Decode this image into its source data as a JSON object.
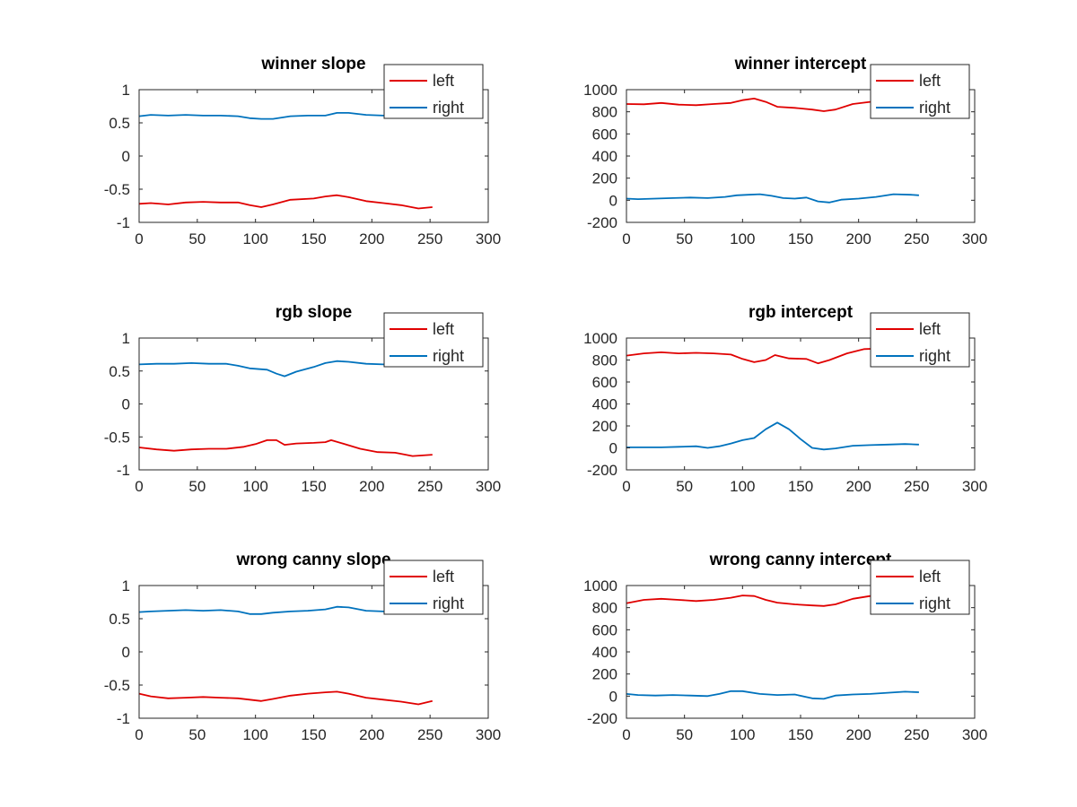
{
  "colors": {
    "left": "#e00000",
    "right": "#0072bd",
    "axis": "#262626",
    "background": "#ffffff"
  },
  "chart_data": [
    {
      "type": "line",
      "title": "winner slope",
      "xlabel": "",
      "ylabel": "",
      "xlim": [
        0,
        300
      ],
      "ylim": [
        -1,
        1
      ],
      "xticks": [
        0,
        50,
        100,
        150,
        200,
        250,
        300
      ],
      "yticks": [
        -1,
        -0.5,
        0,
        0.5,
        1
      ],
      "legend_position": "top-right",
      "grid": false,
      "series": [
        {
          "name": "left",
          "color": "#e00000",
          "x": [
            0,
            10,
            25,
            40,
            55,
            70,
            85,
            95,
            105,
            115,
            130,
            150,
            160,
            170,
            180,
            195,
            210,
            225,
            240,
            252
          ],
          "y": [
            -0.72,
            -0.71,
            -0.73,
            -0.7,
            -0.69,
            -0.7,
            -0.7,
            -0.74,
            -0.77,
            -0.73,
            -0.66,
            -0.64,
            -0.61,
            -0.59,
            -0.62,
            -0.68,
            -0.71,
            -0.74,
            -0.79,
            -0.77
          ]
        },
        {
          "name": "right",
          "color": "#0072bd",
          "x": [
            0,
            10,
            25,
            40,
            55,
            70,
            85,
            95,
            105,
            115,
            130,
            145,
            160,
            170,
            180,
            195,
            210,
            225,
            240,
            252
          ],
          "y": [
            0.6,
            0.62,
            0.61,
            0.62,
            0.61,
            0.61,
            0.6,
            0.57,
            0.56,
            0.56,
            0.6,
            0.61,
            0.61,
            0.65,
            0.65,
            0.62,
            0.61,
            0.61,
            0.61,
            0.61
          ]
        }
      ]
    },
    {
      "type": "line",
      "title": "winner intercept",
      "xlabel": "",
      "ylabel": "",
      "xlim": [
        0,
        300
      ],
      "ylim": [
        -200,
        1000
      ],
      "xticks": [
        0,
        50,
        100,
        150,
        200,
        250,
        300
      ],
      "yticks": [
        -200,
        0,
        200,
        400,
        600,
        800,
        1000
      ],
      "legend_position": "top-right",
      "grid": false,
      "series": [
        {
          "name": "left",
          "color": "#e00000",
          "x": [
            0,
            15,
            30,
            45,
            60,
            75,
            90,
            100,
            110,
            120,
            130,
            145,
            160,
            170,
            180,
            195,
            210,
            225,
            240,
            252
          ],
          "y": [
            870,
            868,
            880,
            865,
            860,
            870,
            880,
            905,
            920,
            890,
            845,
            835,
            820,
            805,
            820,
            870,
            890,
            900,
            900,
            895
          ]
        },
        {
          "name": "right",
          "color": "#0072bd",
          "x": [
            0,
            10,
            25,
            40,
            55,
            70,
            85,
            95,
            105,
            115,
            125,
            135,
            145,
            155,
            165,
            175,
            185,
            200,
            215,
            230,
            245,
            252
          ],
          "y": [
            15,
            10,
            15,
            20,
            25,
            20,
            30,
            45,
            50,
            55,
            40,
            20,
            15,
            25,
            -10,
            -20,
            5,
            15,
            30,
            55,
            50,
            45
          ]
        }
      ]
    },
    {
      "type": "line",
      "title": "rgb slope",
      "xlabel": "",
      "ylabel": "",
      "xlim": [
        0,
        300
      ],
      "ylim": [
        -1,
        1
      ],
      "xticks": [
        0,
        50,
        100,
        150,
        200,
        250,
        300
      ],
      "yticks": [
        -1,
        -0.5,
        0,
        0.5,
        1
      ],
      "legend_position": "top-right",
      "grid": false,
      "series": [
        {
          "name": "left",
          "color": "#e00000",
          "x": [
            0,
            15,
            30,
            45,
            60,
            75,
            90,
            100,
            110,
            118,
            125,
            135,
            150,
            160,
            165,
            175,
            190,
            205,
            220,
            235,
            252
          ],
          "y": [
            -0.66,
            -0.69,
            -0.71,
            -0.69,
            -0.68,
            -0.68,
            -0.65,
            -0.61,
            -0.55,
            -0.55,
            -0.62,
            -0.6,
            -0.59,
            -0.58,
            -0.55,
            -0.6,
            -0.68,
            -0.73,
            -0.74,
            -0.79,
            -0.77
          ]
        },
        {
          "name": "right",
          "color": "#0072bd",
          "x": [
            0,
            15,
            30,
            45,
            60,
            75,
            85,
            95,
            110,
            118,
            125,
            135,
            150,
            160,
            170,
            180,
            195,
            210,
            225,
            240,
            252
          ],
          "y": [
            0.6,
            0.61,
            0.61,
            0.62,
            0.61,
            0.61,
            0.58,
            0.54,
            0.52,
            0.46,
            0.42,
            0.49,
            0.56,
            0.62,
            0.65,
            0.64,
            0.61,
            0.6,
            0.61,
            0.62,
            0.61
          ]
        }
      ]
    },
    {
      "type": "line",
      "title": "rgb intercept",
      "xlabel": "",
      "ylabel": "",
      "xlim": [
        0,
        300
      ],
      "ylim": [
        -200,
        1000
      ],
      "xticks": [
        0,
        50,
        100,
        150,
        200,
        250,
        300
      ],
      "yticks": [
        -200,
        0,
        200,
        400,
        600,
        800,
        1000
      ],
      "legend_position": "top-right",
      "grid": false,
      "series": [
        {
          "name": "left",
          "color": "#e00000",
          "x": [
            0,
            15,
            30,
            45,
            60,
            75,
            90,
            100,
            110,
            120,
            128,
            140,
            155,
            165,
            175,
            190,
            205,
            220,
            235,
            252
          ],
          "y": [
            840,
            860,
            870,
            860,
            865,
            860,
            850,
            810,
            780,
            800,
            845,
            815,
            810,
            770,
            800,
            860,
            900,
            905,
            905,
            900
          ]
        },
        {
          "name": "right",
          "color": "#0072bd",
          "x": [
            0,
            15,
            30,
            45,
            60,
            70,
            80,
            90,
            100,
            110,
            120,
            130,
            140,
            150,
            160,
            170,
            180,
            195,
            210,
            225,
            240,
            252
          ],
          "y": [
            5,
            5,
            5,
            10,
            15,
            0,
            15,
            40,
            70,
            90,
            170,
            230,
            170,
            80,
            0,
            -15,
            -5,
            20,
            25,
            30,
            35,
            30
          ]
        }
      ]
    },
    {
      "type": "line",
      "title": "wrong canny slope",
      "xlabel": "",
      "ylabel": "",
      "xlim": [
        0,
        300
      ],
      "ylim": [
        -1,
        1
      ],
      "xticks": [
        0,
        50,
        100,
        150,
        200,
        250,
        300
      ],
      "yticks": [
        -1,
        -0.5,
        0,
        0.5,
        1
      ],
      "legend_position": "top-right",
      "grid": false,
      "series": [
        {
          "name": "left",
          "color": "#e00000",
          "x": [
            0,
            10,
            25,
            40,
            55,
            70,
            85,
            95,
            105,
            115,
            130,
            145,
            160,
            170,
            180,
            195,
            210,
            225,
            240,
            252
          ],
          "y": [
            -0.63,
            -0.67,
            -0.7,
            -0.69,
            -0.68,
            -0.69,
            -0.7,
            -0.72,
            -0.74,
            -0.71,
            -0.66,
            -0.63,
            -0.61,
            -0.6,
            -0.63,
            -0.69,
            -0.72,
            -0.75,
            -0.79,
            -0.74
          ]
        },
        {
          "name": "right",
          "color": "#0072bd",
          "x": [
            0,
            10,
            25,
            40,
            55,
            70,
            85,
            95,
            105,
            115,
            130,
            145,
            160,
            170,
            180,
            195,
            210,
            225,
            240,
            252
          ],
          "y": [
            0.6,
            0.61,
            0.62,
            0.63,
            0.62,
            0.63,
            0.61,
            0.57,
            0.57,
            0.59,
            0.61,
            0.62,
            0.64,
            0.68,
            0.67,
            0.62,
            0.61,
            0.62,
            0.63,
            0.62
          ]
        }
      ]
    },
    {
      "type": "line",
      "title": "wrong canny intercept",
      "xlabel": "",
      "ylabel": "",
      "xlim": [
        0,
        300
      ],
      "ylim": [
        -200,
        1000
      ],
      "xticks": [
        0,
        50,
        100,
        150,
        200,
        250,
        300
      ],
      "yticks": [
        -200,
        0,
        200,
        400,
        600,
        800,
        1000
      ],
      "legend_position": "top-right",
      "grid": false,
      "series": [
        {
          "name": "left",
          "color": "#e00000",
          "x": [
            0,
            15,
            30,
            45,
            60,
            75,
            90,
            100,
            110,
            120,
            130,
            145,
            160,
            170,
            180,
            195,
            210,
            225,
            240,
            252
          ],
          "y": [
            840,
            870,
            880,
            870,
            860,
            870,
            890,
            910,
            905,
            870,
            845,
            830,
            820,
            815,
            830,
            880,
            905,
            910,
            905,
            900
          ]
        },
        {
          "name": "right",
          "color": "#0072bd",
          "x": [
            0,
            10,
            25,
            40,
            55,
            70,
            80,
            90,
            100,
            115,
            130,
            145,
            160,
            170,
            180,
            195,
            210,
            225,
            240,
            252
          ],
          "y": [
            20,
            10,
            5,
            10,
            5,
            0,
            20,
            45,
            45,
            20,
            10,
            15,
            -20,
            -25,
            5,
            15,
            20,
            30,
            40,
            35
          ]
        }
      ]
    }
  ]
}
